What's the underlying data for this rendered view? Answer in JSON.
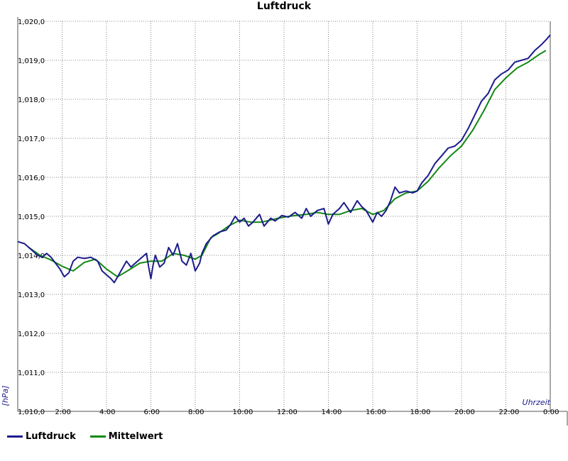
{
  "chart_data": {
    "type": "line",
    "title": "Luftdruck",
    "ylabel": "[hPa]",
    "xlabel": "Uhrzeit",
    "ylim": [
      1010.0,
      1020.0
    ],
    "xlim": [
      0,
      24
    ],
    "y_ticks": [
      {
        "value": 1010,
        "label": "1,010,0"
      },
      {
        "value": 1011,
        "label": "1,011,0"
      },
      {
        "value": 1012,
        "label": "1,012,0"
      },
      {
        "value": 1013,
        "label": "1,013,0"
      },
      {
        "value": 1014,
        "label": "1,014,0"
      },
      {
        "value": 1015,
        "label": "1,015,0"
      },
      {
        "value": 1016,
        "label": "1,016,0"
      },
      {
        "value": 1017,
        "label": "1,017,0"
      },
      {
        "value": 1018,
        "label": "1,018,0"
      },
      {
        "value": 1019,
        "label": "1,019,0"
      },
      {
        "value": 1020,
        "label": "1,020,0"
      }
    ],
    "x_ticks": [
      {
        "value": 2,
        "label": "2:00"
      },
      {
        "value": 4,
        "label": "4:00"
      },
      {
        "value": 6,
        "label": "6:00"
      },
      {
        "value": 8,
        "label": "8:00"
      },
      {
        "value": 10,
        "label": "10:00"
      },
      {
        "value": 12,
        "label": "12:00"
      },
      {
        "value": 14,
        "label": "14:00"
      },
      {
        "value": 16,
        "label": "16:00"
      },
      {
        "value": 18,
        "label": "18:00"
      },
      {
        "value": 20,
        "label": "20:00"
      },
      {
        "value": 22,
        "label": "22:00"
      },
      {
        "value": 24,
        "label": "0:00"
      }
    ],
    "grid": true,
    "legend_position": "bottom-left",
    "series": [
      {
        "name": "Luftdruck",
        "color": "#1c1c8c",
        "points": [
          [
            0.0,
            1014.35
          ],
          [
            0.3,
            1014.3
          ],
          [
            0.6,
            1014.15
          ],
          [
            0.9,
            1014.0
          ],
          [
            1.1,
            1013.95
          ],
          [
            1.3,
            1014.05
          ],
          [
            1.5,
            1013.95
          ],
          [
            1.7,
            1013.8
          ],
          [
            1.9,
            1013.65
          ],
          [
            2.1,
            1013.45
          ],
          [
            2.3,
            1013.55
          ],
          [
            2.5,
            1013.85
          ],
          [
            2.7,
            1013.95
          ],
          [
            3.0,
            1013.92
          ],
          [
            3.3,
            1013.95
          ],
          [
            3.6,
            1013.85
          ],
          [
            3.8,
            1013.6
          ],
          [
            4.0,
            1013.5
          ],
          [
            4.2,
            1013.4
          ],
          [
            4.35,
            1013.3
          ],
          [
            4.6,
            1013.55
          ],
          [
            4.9,
            1013.85
          ],
          [
            5.1,
            1013.7
          ],
          [
            5.3,
            1013.8
          ],
          [
            5.6,
            1013.95
          ],
          [
            5.8,
            1014.05
          ],
          [
            5.9,
            1013.7
          ],
          [
            6.0,
            1013.4
          ],
          [
            6.1,
            1013.75
          ],
          [
            6.2,
            1014.0
          ],
          [
            6.4,
            1013.7
          ],
          [
            6.6,
            1013.8
          ],
          [
            6.8,
            1014.2
          ],
          [
            7.0,
            1014.0
          ],
          [
            7.2,
            1014.3
          ],
          [
            7.4,
            1013.85
          ],
          [
            7.6,
            1013.75
          ],
          [
            7.8,
            1014.05
          ],
          [
            8.0,
            1013.6
          ],
          [
            8.2,
            1013.8
          ],
          [
            8.3,
            1014.05
          ],
          [
            8.5,
            1014.3
          ],
          [
            8.8,
            1014.5
          ],
          [
            9.1,
            1014.6
          ],
          [
            9.4,
            1014.65
          ],
          [
            9.6,
            1014.8
          ],
          [
            9.8,
            1015.0
          ],
          [
            10.0,
            1014.85
          ],
          [
            10.2,
            1014.95
          ],
          [
            10.4,
            1014.75
          ],
          [
            10.6,
            1014.85
          ],
          [
            10.9,
            1015.05
          ],
          [
            11.1,
            1014.75
          ],
          [
            11.4,
            1014.95
          ],
          [
            11.6,
            1014.88
          ],
          [
            11.9,
            1015.02
          ],
          [
            12.2,
            1014.98
          ],
          [
            12.5,
            1015.1
          ],
          [
            12.8,
            1014.95
          ],
          [
            13.0,
            1015.2
          ],
          [
            13.2,
            1015.0
          ],
          [
            13.5,
            1015.15
          ],
          [
            13.8,
            1015.2
          ],
          [
            13.9,
            1015.0
          ],
          [
            14.0,
            1014.8
          ],
          [
            14.2,
            1015.05
          ],
          [
            14.5,
            1015.2
          ],
          [
            14.7,
            1015.35
          ],
          [
            15.0,
            1015.1
          ],
          [
            15.3,
            1015.4
          ],
          [
            15.5,
            1015.25
          ],
          [
            15.7,
            1015.15
          ],
          [
            15.9,
            1014.95
          ],
          [
            16.0,
            1014.85
          ],
          [
            16.2,
            1015.1
          ],
          [
            16.4,
            1015.0
          ],
          [
            16.6,
            1015.15
          ],
          [
            16.8,
            1015.4
          ],
          [
            17.0,
            1015.75
          ],
          [
            17.2,
            1015.6
          ],
          [
            17.5,
            1015.65
          ],
          [
            17.8,
            1015.6
          ],
          [
            18.0,
            1015.65
          ],
          [
            18.2,
            1015.85
          ],
          [
            18.5,
            1016.05
          ],
          [
            18.8,
            1016.35
          ],
          [
            19.1,
            1016.55
          ],
          [
            19.4,
            1016.75
          ],
          [
            19.7,
            1016.8
          ],
          [
            20.0,
            1016.95
          ],
          [
            20.3,
            1017.25
          ],
          [
            20.6,
            1017.6
          ],
          [
            20.9,
            1017.95
          ],
          [
            21.2,
            1018.15
          ],
          [
            21.5,
            1018.5
          ],
          [
            21.8,
            1018.65
          ],
          [
            22.1,
            1018.75
          ],
          [
            22.4,
            1018.95
          ],
          [
            22.7,
            1019.0
          ],
          [
            23.0,
            1019.05
          ],
          [
            23.3,
            1019.25
          ],
          [
            23.6,
            1019.4
          ],
          [
            23.85,
            1019.55
          ],
          [
            24.0,
            1019.65
          ]
        ]
      },
      {
        "name": "Mittelwert",
        "color": "#118811",
        "points": [
          [
            0.5,
            1014.2
          ],
          [
            1.0,
            1014.0
          ],
          [
            1.5,
            1013.88
          ],
          [
            2.0,
            1013.72
          ],
          [
            2.5,
            1013.6
          ],
          [
            3.0,
            1013.82
          ],
          [
            3.5,
            1013.9
          ],
          [
            4.0,
            1013.65
          ],
          [
            4.5,
            1013.45
          ],
          [
            5.0,
            1013.62
          ],
          [
            5.5,
            1013.8
          ],
          [
            6.0,
            1013.85
          ],
          [
            6.5,
            1013.85
          ],
          [
            7.0,
            1014.05
          ],
          [
            7.5,
            1014.0
          ],
          [
            8.0,
            1013.9
          ],
          [
            8.3,
            1014.0
          ],
          [
            8.7,
            1014.45
          ],
          [
            9.0,
            1014.55
          ],
          [
            9.5,
            1014.75
          ],
          [
            10.0,
            1014.9
          ],
          [
            10.5,
            1014.85
          ],
          [
            11.0,
            1014.85
          ],
          [
            11.5,
            1014.92
          ],
          [
            12.0,
            1014.98
          ],
          [
            12.5,
            1015.02
          ],
          [
            13.0,
            1015.05
          ],
          [
            13.5,
            1015.1
          ],
          [
            14.0,
            1015.05
          ],
          [
            14.5,
            1015.05
          ],
          [
            15.0,
            1015.15
          ],
          [
            15.5,
            1015.2
          ],
          [
            16.0,
            1015.05
          ],
          [
            16.5,
            1015.15
          ],
          [
            17.0,
            1015.45
          ],
          [
            17.5,
            1015.6
          ],
          [
            18.0,
            1015.65
          ],
          [
            18.5,
            1015.9
          ],
          [
            19.0,
            1016.25
          ],
          [
            19.5,
            1016.55
          ],
          [
            20.0,
            1016.8
          ],
          [
            20.5,
            1017.2
          ],
          [
            21.0,
            1017.7
          ],
          [
            21.5,
            1018.25
          ],
          [
            22.0,
            1018.55
          ],
          [
            22.5,
            1018.8
          ],
          [
            23.0,
            1018.95
          ],
          [
            23.5,
            1019.15
          ],
          [
            23.8,
            1019.25
          ]
        ]
      }
    ]
  }
}
